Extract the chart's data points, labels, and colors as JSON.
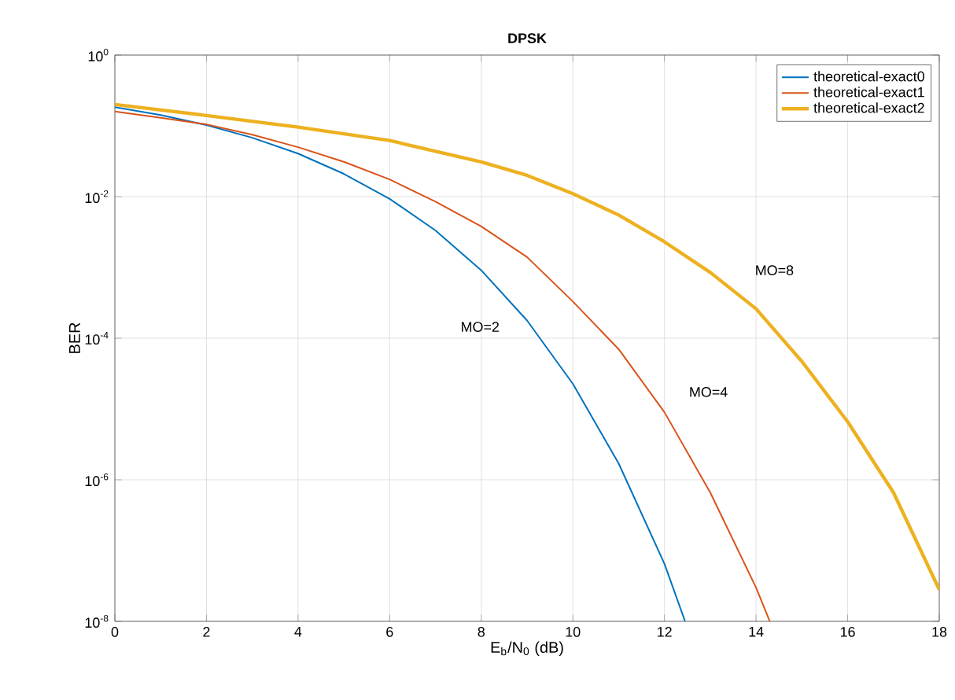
{
  "chart_data": {
    "type": "line",
    "title": "DPSK",
    "xlabel": "E$_{b}$/N$_{0}$ (dB)",
    "ylabel": "BER",
    "log": "y",
    "grid": true,
    "legend": "top right",
    "xlim": [
      0,
      18
    ],
    "xticks": [
      0,
      2,
      4,
      6,
      8,
      10,
      12,
      14,
      16,
      18
    ],
    "ylim": [
      1e-08,
      1
    ],
    "yticks": [
      {
        "value": 1e-08,
        "label": "10$^{-8}$"
      },
      {
        "value": 1e-06,
        "label": "10$^{-6}$"
      },
      {
        "value": 0.0001,
        "label": "10$^{-4}$"
      },
      {
        "value": 0.01,
        "label": "10$^{-2}$"
      },
      {
        "value": 1,
        "label": "10$^{0}$"
      }
    ],
    "series": [
      {
        "name": "theoretical-exact0",
        "color": "#0072bd",
        "x": [
          0,
          1,
          2,
          3,
          4,
          5,
          6,
          7,
          8,
          9,
          10,
          11,
          12,
          12.45
        ],
        "values": [
          0.184,
          0.142,
          0.1025,
          0.068,
          0.0406,
          0.021,
          0.0093,
          0.00333,
          0.00091,
          0.000178,
          2.27e-05,
          1.7e-06,
          6.5e-08,
          1e-08
        ]
      },
      {
        "name": "theoretical-exact1",
        "color": "#d95319",
        "x": [
          0,
          1,
          2,
          3,
          4,
          5,
          6,
          7,
          8,
          9,
          10,
          11,
          12,
          13,
          14,
          14.3
        ],
        "values": [
          0.16,
          0.13,
          0.105,
          0.075,
          0.05,
          0.031,
          0.0175,
          0.0085,
          0.0038,
          0.0014,
          0.00033,
          7e-05,
          9e-06,
          6.6e-07,
          3e-08,
          1e-08
        ]
      },
      {
        "name": "theoretical-exact2",
        "color": "#edb120",
        "x": [
          0,
          2,
          4,
          6,
          8,
          9,
          10,
          11,
          12,
          13,
          14,
          15,
          16,
          17,
          18
        ],
        "values": [
          0.2,
          0.14,
          0.096,
          0.062,
          0.031,
          0.02,
          0.011,
          0.0055,
          0.0023,
          0.00085,
          0.00026,
          4.7e-05,
          6.6e-06,
          6.6e-07,
          2.8e-08
        ]
      }
    ],
    "annotations": [
      "MO=2",
      "MO=4",
      "MO=8"
    ]
  }
}
